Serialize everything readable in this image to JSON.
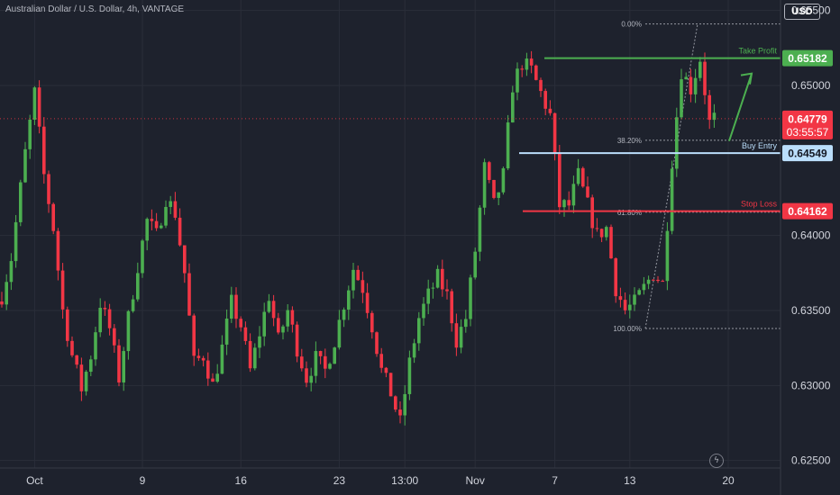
{
  "header": {
    "symbol_title": "Australian Dollar / U.S. Dollar, 4h, VANTAGE",
    "currency": "USD"
  },
  "chart_data": {
    "type": "candlestick",
    "ylim": [
      0.6245,
      0.6557
    ],
    "y_ticks": [
      "0.65500",
      "0.65000",
      "0.64000",
      "0.63500",
      "0.63000",
      "0.62500"
    ],
    "y_tick_values": [
      0.655,
      0.65,
      0.64,
      0.635,
      0.63,
      0.625
    ],
    "x_ticks": [
      {
        "label": "Oct",
        "bar": 7
      },
      {
        "label": "9",
        "bar": 30
      },
      {
        "label": "16",
        "bar": 51
      },
      {
        "label": "23",
        "bar": 72
      },
      {
        "label": "13:00",
        "bar": 86
      },
      {
        "label": "Nov",
        "bar": 101
      },
      {
        "label": "7",
        "bar": 118
      },
      {
        "label": "13",
        "bar": 134
      },
      {
        "label": "20",
        "bar": 155
      }
    ],
    "price_levels": [
      {
        "name": "take-profit",
        "label": "Take Profit",
        "value": 0.65182,
        "tag": "0.65182",
        "color": "#4caf50"
      },
      {
        "name": "buy-entry",
        "label": "Buy Entry",
        "value": 0.64549,
        "tag": "0.64549",
        "color": "#bbdefb"
      },
      {
        "name": "stop-loss",
        "label": "Stop Loss",
        "value": 0.64162,
        "tag": "0.64162",
        "color": "#f23645"
      }
    ],
    "last_price": {
      "value": 0.64779,
      "tag": "0.64779",
      "countdown": "03:55:57",
      "color": "#f23645"
    },
    "fibonacci": {
      "high": 0.6541,
      "low": 0.6338,
      "levels": [
        {
          "label": "0.00%",
          "ratio": 0
        },
        {
          "label": "38.20%",
          "ratio": 0.382
        },
        {
          "label": "61.80%",
          "ratio": 0.618
        },
        {
          "label": "100.00%",
          "ratio": 1
        }
      ]
    },
    "colors": {
      "up": "#4caf50",
      "down": "#f23645",
      "background": "#1e222d"
    },
    "close_waypoints": [
      [
        0,
        0.636
      ],
      [
        2,
        0.6385
      ],
      [
        5,
        0.6455
      ],
      [
        7,
        0.6495
      ],
      [
        9,
        0.644
      ],
      [
        11,
        0.6405
      ],
      [
        13,
        0.635
      ],
      [
        15,
        0.632
      ],
      [
        17,
        0.6298
      ],
      [
        19,
        0.632
      ],
      [
        21,
        0.6355
      ],
      [
        23,
        0.6338
      ],
      [
        25,
        0.6305
      ],
      [
        27,
        0.6345
      ],
      [
        29,
        0.638
      ],
      [
        31,
        0.641
      ],
      [
        33,
        0.64
      ],
      [
        35,
        0.6425
      ],
      [
        37,
        0.6415
      ],
      [
        39,
        0.6375
      ],
      [
        41,
        0.6315
      ],
      [
        43,
        0.632
      ],
      [
        45,
        0.63
      ],
      [
        47,
        0.6325
      ],
      [
        49,
        0.6355
      ],
      [
        51,
        0.634
      ],
      [
        53,
        0.631
      ],
      [
        55,
        0.6335
      ],
      [
        57,
        0.636
      ],
      [
        59,
        0.633
      ],
      [
        61,
        0.635
      ],
      [
        63,
        0.6325
      ],
      [
        65,
        0.6305
      ],
      [
        67,
        0.6318
      ],
      [
        69,
        0.631
      ],
      [
        71,
        0.633
      ],
      [
        73,
        0.6355
      ],
      [
        75,
        0.6378
      ],
      [
        77,
        0.6365
      ],
      [
        79,
        0.634
      ],
      [
        81,
        0.631
      ],
      [
        83,
        0.6295
      ],
      [
        85,
        0.6275
      ],
      [
        87,
        0.6315
      ],
      [
        89,
        0.6345
      ],
      [
        91,
        0.636
      ],
      [
        93,
        0.6372
      ],
      [
        95,
        0.636
      ],
      [
        97,
        0.633
      ],
      [
        99,
        0.6345
      ],
      [
        101,
        0.639
      ],
      [
        103,
        0.6445
      ],
      [
        105,
        0.642
      ],
      [
        107,
        0.644
      ],
      [
        109,
        0.65
      ],
      [
        111,
        0.6515
      ],
      [
        113,
        0.651
      ],
      [
        115,
        0.6495
      ],
      [
        117,
        0.648
      ],
      [
        119,
        0.642
      ],
      [
        121,
        0.642
      ],
      [
        123,
        0.644
      ],
      [
        125,
        0.642
      ],
      [
        127,
        0.64
      ],
      [
        129,
        0.6405
      ],
      [
        131,
        0.6365
      ],
      [
        133,
        0.635
      ],
      [
        135,
        0.6355
      ],
      [
        137,
        0.6365
      ],
      [
        139,
        0.6375
      ],
      [
        141,
        0.6368
      ],
      [
        143,
        0.645
      ],
      [
        145,
        0.651
      ],
      [
        147,
        0.6498
      ],
      [
        149,
        0.6518
      ],
      [
        151,
        0.6475
      ],
      [
        152,
        0.6478
      ]
    ]
  }
}
